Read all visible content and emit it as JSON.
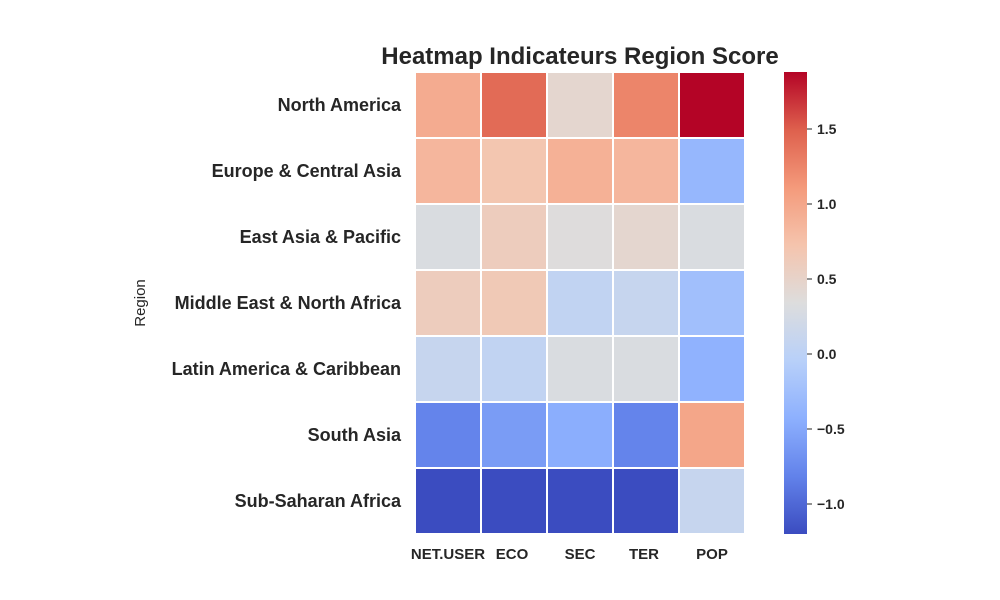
{
  "chart_data": {
    "type": "heatmap",
    "title": "Heatmap Indicateurs Region Score",
    "ylabel": "Region",
    "xlabel": "",
    "rows": [
      "North America",
      "Europe & Central Asia",
      "East Asia & Pacific",
      "Middle East & North Africa",
      "Latin America & Caribbean",
      "South Asia",
      "Sub-Saharan Africa"
    ],
    "columns": [
      "NET.USER",
      "ECO",
      "SEC",
      "TER",
      "POP"
    ],
    "values": [
      [
        0.95,
        1.42,
        0.45,
        1.25,
        1.88
      ],
      [
        0.85,
        0.7,
        0.9,
        0.85,
        -0.35
      ],
      [
        0.3,
        0.6,
        0.35,
        0.45,
        0.3
      ],
      [
        0.6,
        0.65,
        0.05,
        0.1,
        -0.25
      ],
      [
        0.1,
        0.05,
        0.3,
        0.3,
        -0.4
      ],
      [
        -0.8,
        -0.6,
        -0.45,
        -0.8,
        1.0
      ],
      [
        -1.2,
        -1.2,
        -1.2,
        -1.2,
        0.1
      ]
    ],
    "colormap": "coolwarm",
    "vmin": -1.2,
    "vmax": 1.88,
    "colorbar_ticks": [
      "−1.0",
      "−0.5",
      "0.0",
      "0.5",
      "1.0",
      "1.5"
    ],
    "grid_line_color": "#ffffff"
  }
}
